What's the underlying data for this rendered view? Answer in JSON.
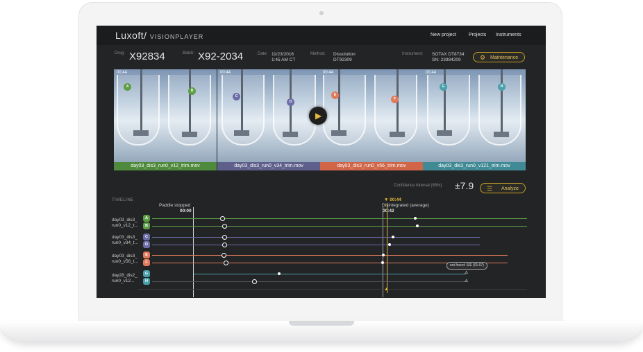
{
  "app": {
    "logo": "Luxoft/",
    "product": "VISIONPLAYER"
  },
  "nav": {
    "new_project": "New project",
    "projects": "Projects",
    "instruments": "Instruments"
  },
  "header": {
    "drug_label": "Drug:",
    "drug_value": "X92834",
    "batch_label": "Batch:",
    "batch_value": "X92-2034",
    "date_label": "Date:",
    "date_value_1": "11/23/2016",
    "date_value_2": "1:45 AM CT",
    "method_label": "Method:",
    "method_value_1": "Dissolution",
    "method_value_2": "DT92309",
    "instrument_label": "Instrument:",
    "instrument_value_1": "SOTAX DT8734",
    "instrument_value_2": "SN: 23984209",
    "maintenance_label": "Maintenance"
  },
  "videos": [
    {
      "time": "00:44",
      "caption": "day03_dis3_run0_v12_trim.mov",
      "badges": [
        "A",
        "B"
      ],
      "color": "#4f8a3c",
      "badge_color": "#5d9e46"
    },
    {
      "time": "00:44",
      "caption": "day03_dis3_run0_v34_trim.mov",
      "badges": [
        "C",
        "D"
      ],
      "color": "#5f5f8c",
      "badge_color": "#6c6ca8"
    },
    {
      "time": "00:44",
      "caption": "day03_dis3_run0_v56_trim.mov",
      "badges": [
        "E",
        "F"
      ],
      "color": "#d06548",
      "badge_color": "#e07a5a"
    },
    {
      "time": "00:44",
      "caption": "day03_dis3_run0_v121_trim.mov",
      "badges": [
        "G",
        "H"
      ],
      "color": "#3f8a94",
      "badge_color": "#4aa0aa"
    }
  ],
  "confidence": {
    "label": "Confidence Interval (95%)",
    "value": "±7.9",
    "analyze_label": "Analyze"
  },
  "timeline": {
    "title": "TIMELINE",
    "paddle_stopped_label": "Paddle stopped",
    "paddle_stopped_time": "00:00",
    "disintegrated_label": "Disintegrated (average)",
    "disintegrated_time": "00:42",
    "cursor_time": "00:44",
    "not_found_label": "not found: SIE (01:07)",
    "rows": [
      {
        "name_1": "day03_dis3_",
        "name_2": "run0_v12_t...",
        "channels": [
          "A",
          "B"
        ],
        "color": "#5d9e46"
      },
      {
        "name_1": "day03_dis3_",
        "name_2": "run0_v34_t...",
        "channels": [
          "C",
          "D"
        ],
        "color": "#6c6ca8"
      },
      {
        "name_1": "day03_dis3_",
        "name_2": "run0_v56_t...",
        "channels": [
          "E",
          "F"
        ],
        "color": "#e07a5a"
      },
      {
        "name_1": "day28_dis2_",
        "name_2": "run0_v12...",
        "channels": [
          "G",
          "H"
        ],
        "color": "#4aa0aa"
      }
    ]
  },
  "colors": {
    "accent": "#e6b93a",
    "screen_bg": "#232426"
  },
  "icons": {
    "maintenance": "wrench-icon",
    "analyze": "sliders-icon",
    "play": "play-icon",
    "warning": "warning-icon"
  }
}
